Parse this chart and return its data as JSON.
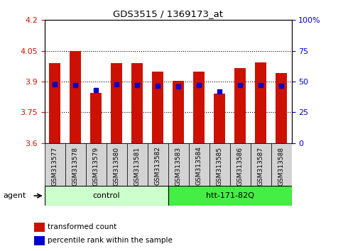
{
  "title": "GDS3515 / 1369173_at",
  "samples": [
    "GSM313577",
    "GSM313578",
    "GSM313579",
    "GSM313580",
    "GSM313581",
    "GSM313582",
    "GSM313583",
    "GSM313584",
    "GSM313585",
    "GSM313586",
    "GSM313587",
    "GSM313588"
  ],
  "red_values": [
    3.99,
    4.05,
    3.845,
    3.99,
    3.99,
    3.95,
    3.905,
    3.95,
    3.84,
    3.965,
    3.995,
    3.94
  ],
  "blue_values": [
    3.886,
    3.884,
    3.857,
    3.886,
    3.884,
    3.881,
    3.875,
    3.882,
    3.852,
    3.882,
    3.882,
    3.88
  ],
  "ymin": 3.6,
  "ymax": 4.2,
  "yticks_left": [
    3.6,
    3.75,
    3.9,
    4.05,
    4.2
  ],
  "yticks_right_pct": [
    0,
    25,
    50,
    75,
    100
  ],
  "yticks_right_labels": [
    "0",
    "25",
    "50",
    "75",
    "100%"
  ],
  "agent_groups": [
    {
      "label": "control",
      "start": 0,
      "end": 6,
      "color": "#ccffcc"
    },
    {
      "label": "htt-171-82Q",
      "start": 6,
      "end": 12,
      "color": "#44ee44"
    }
  ],
  "bar_color": "#cc1100",
  "blue_color": "#0000cc",
  "left_tick_color": "#cc1100",
  "right_tick_color": "#0000cc",
  "bar_width": 0.55,
  "figsize": [
    4.83,
    3.54
  ],
  "dpi": 100
}
